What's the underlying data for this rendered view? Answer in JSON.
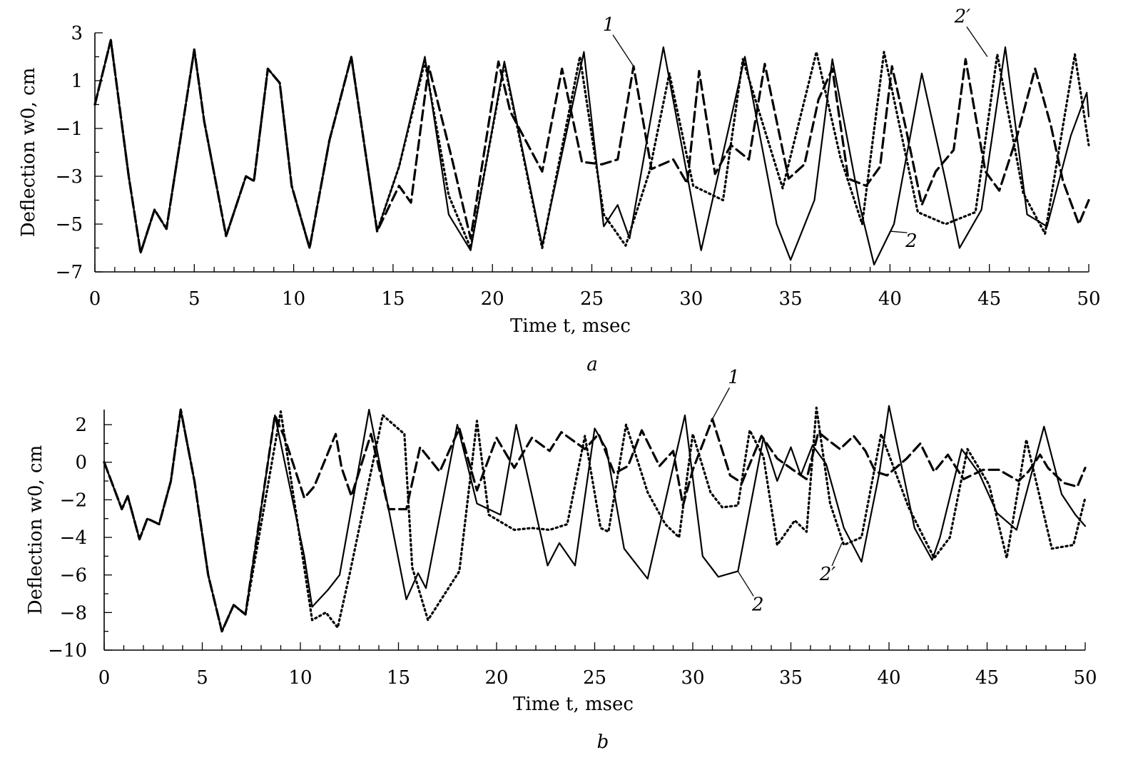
{
  "colors": {
    "background": "#ffffff",
    "ink": "#000000"
  },
  "chart_data": [
    {
      "type": "line",
      "panel_label": "a",
      "xlabel": "Time t, msec",
      "ylabel": "Deflection w0, cm",
      "xlim": [
        0,
        50
      ],
      "ylim": [
        -7,
        3
      ],
      "xticks": [
        "0",
        "5",
        "10",
        "15",
        "20",
        "25",
        "30",
        "35",
        "40",
        "45",
        "50"
      ],
      "yticks": [
        "3",
        "1",
        "−1",
        "−3",
        "−5",
        "−7"
      ],
      "grid": false,
      "series": [
        {
          "name": "1",
          "style": "dashed",
          "x": [
            0,
            0.8,
            1.7,
            2.3,
            3.0,
            3.6,
            4.2,
            5.0,
            5.5,
            6.6,
            7.6,
            8.0,
            8.7,
            9.3,
            9.9,
            10.8,
            11.8,
            12.9,
            14.2,
            15.3,
            15.9,
            16.8,
            18.0,
            18.9,
            20.3,
            20.9,
            22.5,
            23.5,
            24.5,
            25.5,
            26.3,
            27.1,
            28.0,
            29.1,
            29.8,
            30.4,
            31.2,
            32.0,
            32.9,
            33.7,
            34.9,
            35.7,
            36.4,
            37.1,
            37.9,
            38.8,
            39.5,
            40.1,
            40.8,
            41.6,
            42.3,
            43.2,
            43.8,
            44.8,
            45.5,
            46.4,
            47.3,
            48.1,
            48.7,
            49.5,
            50
          ],
          "y": [
            0,
            2.7,
            -3,
            -6.2,
            -4.4,
            -5.2,
            -2,
            2.3,
            -0.7,
            -5.5,
            -3,
            -3.2,
            1.5,
            0.9,
            -3.4,
            -6,
            -1.5,
            2,
            -5.3,
            -3.4,
            -4.1,
            1.6,
            -2.4,
            -5.6,
            1.8,
            -0.3,
            -2.8,
            1.5,
            -2.4,
            -2.5,
            -2.3,
            1.6,
            -2.7,
            -2.3,
            -3.3,
            1.4,
            -2.9,
            -1.7,
            -2.3,
            1.7,
            -3.1,
            -2.5,
            0.2,
            1.5,
            -3.1,
            -3.4,
            -2.6,
            1.6,
            -1,
            -4.2,
            -2.8,
            -1.9,
            1.9,
            -2.8,
            -3.6,
            -1.3,
            1.5,
            -0.9,
            -3.2,
            -5,
            -4
          ]
        },
        {
          "name": "2",
          "style": "solid",
          "x": [
            0,
            0.8,
            1.7,
            2.3,
            3.0,
            3.6,
            4.2,
            5.0,
            5.5,
            6.6,
            7.6,
            8.0,
            8.7,
            9.3,
            9.9,
            10.8,
            11.8,
            12.9,
            14.2,
            15.3,
            16.6,
            17.8,
            18.9,
            20.6,
            22.5,
            24.6,
            25.6,
            26.3,
            26.9,
            28.6,
            30.5,
            32.7,
            34.3,
            35.0,
            36.2,
            37.1,
            38.5,
            39.2,
            40.2,
            41.6,
            42.8,
            43.5,
            44.6,
            45.8,
            46.9,
            47.9,
            49.1,
            49.9,
            50
          ],
          "y": [
            0,
            2.7,
            -3,
            -6.2,
            -4.4,
            -5.2,
            -2,
            2.3,
            -0.7,
            -5.5,
            -3,
            -3.2,
            1.5,
            0.9,
            -3.4,
            -6,
            -1.5,
            2,
            -5.3,
            -2.6,
            2,
            -4.6,
            -6.1,
            1.8,
            -5.9,
            2.2,
            -5.1,
            -4.2,
            -5.6,
            2.4,
            -6.1,
            2,
            -5,
            -6.5,
            -4,
            1.9,
            -4.3,
            -6.7,
            -5,
            1.3,
            -3.2,
            -6,
            -4.4,
            2.4,
            -4.6,
            -5.1,
            -1.3,
            0.5,
            -0.5
          ]
        },
        {
          "name": "2′",
          "style": "dotted",
          "x": [
            0,
            0.8,
            1.7,
            2.3,
            3.0,
            3.6,
            4.2,
            5.0,
            5.5,
            6.6,
            7.6,
            8.0,
            8.7,
            9.3,
            9.9,
            10.8,
            11.8,
            12.9,
            14.2,
            15.3,
            16.6,
            17.8,
            18.9,
            20.6,
            22.5,
            24.4,
            25.6,
            26.7,
            27.9,
            28.9,
            30.1,
            31.6,
            32.6,
            34.6,
            36.3,
            37.5,
            38.6,
            39.7,
            41.4,
            42.8,
            44.3,
            45.4,
            46.7,
            47.8,
            49.3,
            50
          ],
          "y": [
            0,
            2.7,
            -3,
            -6.2,
            -4.4,
            -5.2,
            -2,
            2.3,
            -0.7,
            -5.5,
            -3,
            -3.2,
            1.5,
            0.9,
            -3.4,
            -6,
            -1.5,
            2,
            -5.3,
            -2.6,
            1.8,
            -3.8,
            -6,
            1.7,
            -6,
            2,
            -4.6,
            -5.9,
            -2.8,
            1.3,
            -3.4,
            -4,
            1.9,
            -3.5,
            2.2,
            -2.2,
            -5,
            2.2,
            -4.5,
            -5,
            -4.5,
            2.1,
            -3.7,
            -5.4,
            2.1,
            -1.7
          ]
        }
      ],
      "annotations": [
        {
          "text": "1",
          "target_series": "1",
          "x": 27.1,
          "y": 1.6
        },
        {
          "text": "2′",
          "target_series": "2′",
          "x": 44.9,
          "y": 2.0
        },
        {
          "text": "2",
          "target_series": "2",
          "x": 40.0,
          "y": -5.3
        }
      ]
    },
    {
      "type": "line",
      "panel_label": "b",
      "xlabel": "Time t, msec",
      "ylabel": "Deflection w0, cm",
      "xlim": [
        0,
        50
      ],
      "ylim": [
        -10,
        2.8
      ],
      "xticks": [
        "0",
        "5",
        "10",
        "15",
        "20",
        "25",
        "30",
        "35",
        "40",
        "45",
        "50"
      ],
      "yticks": [
        "2",
        "0",
        "−2",
        "−4",
        "−6",
        "−8",
        "−10"
      ],
      "grid": false,
      "series": [
        {
          "name": "1",
          "style": "dashed",
          "x": [
            0,
            0.9,
            1.2,
            1.8,
            2.2,
            2.8,
            3.4,
            3.9,
            4.6,
            5.3,
            6.0,
            6.6,
            7.2,
            8.7,
            9.2,
            10.2,
            10.7,
            11.8,
            12.1,
            12.6,
            13.6,
            14.5,
            15.4,
            16.1,
            17.1,
            18.1,
            19.0,
            20.0,
            20.9,
            21.8,
            22.7,
            23.3,
            24.5,
            25.2,
            26.0,
            26.7,
            27.4,
            28.3,
            29.0,
            29.5,
            30.0,
            31.0,
            31.9,
            32.5,
            33.5,
            34.3,
            35.1,
            35.8,
            36.4,
            37.0,
            37.5,
            38.2,
            38.8,
            39.3,
            39.9,
            40.9,
            41.6,
            42.3,
            43.0,
            43.8,
            44.8,
            45.6,
            46.6,
            47.1,
            47.7,
            48.1,
            48.9,
            49.6,
            50
          ],
          "y": [
            0,
            -2.5,
            -1.8,
            -4.1,
            -3,
            -3.3,
            -1,
            2.8,
            -1,
            -6,
            -9,
            -7.6,
            -8.1,
            2.5,
            1.3,
            -1.9,
            -1.3,
            1.5,
            -0.3,
            -1.8,
            1.5,
            -2.5,
            -2.5,
            0.8,
            -0.5,
            1.8,
            -1.5,
            1.3,
            -0.3,
            1.3,
            0.6,
            1.6,
            0.7,
            1.5,
            -0.6,
            -0.2,
            1.7,
            -0.2,
            0.6,
            -2.3,
            -0.4,
            2.3,
            -0.7,
            -1.1,
            1.4,
            0.2,
            -0.4,
            -0.9,
            1.6,
            1.1,
            0.7,
            1.4,
            0.6,
            -0.5,
            -0.7,
            0.2,
            1,
            -0.5,
            0.4,
            -0.9,
            -0.4,
            -0.4,
            -1,
            -0.5,
            0.4,
            -0.3,
            -1.1,
            -1.3,
            -0.3
          ]
        },
        {
          "name": "2",
          "style": "solid",
          "x": [
            0,
            0.9,
            1.2,
            1.8,
            2.2,
            2.8,
            3.4,
            3.9,
            4.6,
            5.3,
            6.0,
            6.6,
            7.2,
            8.7,
            10.2,
            10.6,
            11.4,
            12.0,
            13.5,
            15.4,
            16.0,
            16.4,
            18.0,
            19.0,
            20.2,
            21.0,
            22.6,
            23.2,
            24.0,
            25.0,
            25.6,
            26.5,
            27.7,
            29.6,
            30.5,
            31.3,
            32.3,
            33.6,
            34.3,
            35.0,
            35.5,
            36.1,
            36.8,
            37.7,
            38.6,
            39.5,
            40.0,
            41.3,
            42.2,
            42.6,
            43.7,
            44.6,
            45.5,
            46.5,
            47.9,
            48.8,
            49.5,
            50
          ],
          "y": [
            0,
            -2.5,
            -1.8,
            -4.1,
            -3,
            -3.3,
            -1,
            2.8,
            -1,
            -6,
            -9,
            -7.6,
            -8.1,
            2.5,
            -5,
            -7.7,
            -6.8,
            -6,
            2.8,
            -7.3,
            -5.9,
            -6.7,
            2,
            -2.2,
            -2.8,
            2,
            -5.5,
            -4.3,
            -5.5,
            1.8,
            0.7,
            -4.6,
            -6.2,
            2.5,
            -5,
            -6.1,
            -5.8,
            1.3,
            -1,
            0.8,
            -0.7,
            0.9,
            -0.1,
            -3.5,
            -5.3,
            -0.6,
            3,
            -3.5,
            -5.2,
            -4,
            0.7,
            -0.6,
            -2.7,
            -3.6,
            1.9,
            -1.7,
            -2.8,
            -3.4
          ]
        },
        {
          "name": "2′",
          "style": "dotted",
          "x": [
            0,
            0.9,
            1.2,
            1.8,
            2.2,
            2.8,
            3.4,
            3.9,
            4.6,
            5.3,
            6.0,
            6.6,
            7.2,
            9.0,
            10.6,
            11.3,
            11.9,
            12.5,
            14.2,
            15.3,
            15.7,
            16.5,
            18.1,
            19.0,
            19.6,
            20.9,
            21.8,
            22.7,
            23.6,
            24.5,
            25.3,
            25.7,
            26.6,
            27.7,
            28.6,
            29.3,
            30.0,
            30.9,
            31.5,
            32.3,
            32.9,
            33.6,
            34.3,
            35.2,
            35.8,
            36.3,
            37.0,
            37.7,
            38.6,
            39.6,
            41.0,
            42.3,
            43.1,
            44.0,
            45.1,
            46.0,
            47.0,
            48.3,
            49.4,
            50
          ],
          "y": [
            0,
            -2.5,
            -1.8,
            -4.1,
            -3,
            -3.3,
            -1,
            2.8,
            -1,
            -6,
            -9,
            -7.6,
            -8.1,
            2.7,
            -8.4,
            -8,
            -8.8,
            -6,
            2.5,
            1.5,
            -5.6,
            -8.4,
            -5.8,
            2.2,
            -2.8,
            -3.6,
            -3.5,
            -3.6,
            -3.3,
            1.4,
            -3.5,
            -3.7,
            2,
            -1.6,
            -3.3,
            -4,
            1.5,
            -1.6,
            -2.4,
            -2.3,
            1.7,
            0.3,
            -4.4,
            -3.1,
            -3.7,
            2.9,
            -2.2,
            -4.4,
            -4,
            1.5,
            -2.4,
            -5.1,
            -4,
            0.7,
            -1.2,
            -5.1,
            1.2,
            -4.6,
            -4.4,
            -1.9
          ]
        }
      ],
      "annotations": [
        {
          "text": "1",
          "target_series": "1",
          "x": 31.0,
          "y": 2.3
        },
        {
          "text": "2",
          "target_series": "2",
          "x": 32.3,
          "y": -5.8
        },
        {
          "text": "2′",
          "target_series": "2′",
          "x": 37.6,
          "y": -4.3
        }
      ]
    }
  ]
}
